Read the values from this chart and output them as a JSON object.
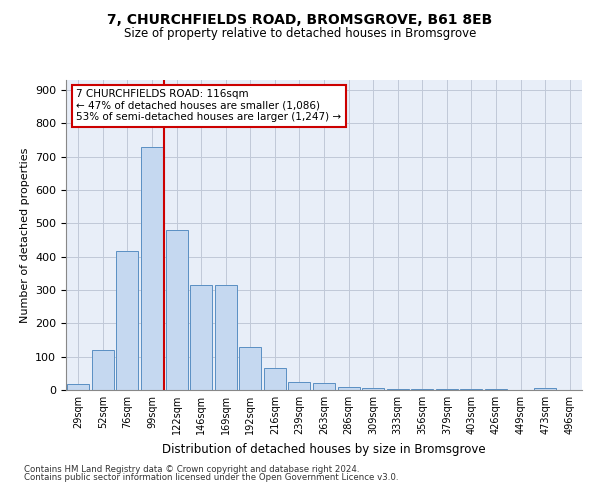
{
  "title": "7, CHURCHFIELDS ROAD, BROMSGROVE, B61 8EB",
  "subtitle": "Size of property relative to detached houses in Bromsgrove",
  "xlabel": "Distribution of detached houses by size in Bromsgrove",
  "ylabel": "Number of detached properties",
  "categories": [
    "29sqm",
    "52sqm",
    "76sqm",
    "99sqm",
    "122sqm",
    "146sqm",
    "169sqm",
    "192sqm",
    "216sqm",
    "239sqm",
    "263sqm",
    "286sqm",
    "309sqm",
    "333sqm",
    "356sqm",
    "379sqm",
    "403sqm",
    "426sqm",
    "449sqm",
    "473sqm",
    "496sqm"
  ],
  "values": [
    18,
    120,
    418,
    730,
    480,
    315,
    315,
    130,
    65,
    25,
    20,
    10,
    5,
    3,
    3,
    3,
    2,
    2,
    0,
    5,
    0
  ],
  "bar_color": "#c5d8f0",
  "bar_edge_color": "#5a8fc3",
  "vline_color": "#cc0000",
  "annotation_line1": "7 CHURCHFIELDS ROAD: 116sqm",
  "annotation_line2": "← 47% of detached houses are smaller (1,086)",
  "annotation_line3": "53% of semi-detached houses are larger (1,247) →",
  "annotation_box_color": "#cc0000",
  "grid_color": "#c0c8d8",
  "bg_color": "#e8eef8",
  "ylim": [
    0,
    930
  ],
  "yticks": [
    0,
    100,
    200,
    300,
    400,
    500,
    600,
    700,
    800,
    900
  ],
  "footer1": "Contains HM Land Registry data © Crown copyright and database right 2024.",
  "footer2": "Contains public sector information licensed under the Open Government Licence v3.0."
}
